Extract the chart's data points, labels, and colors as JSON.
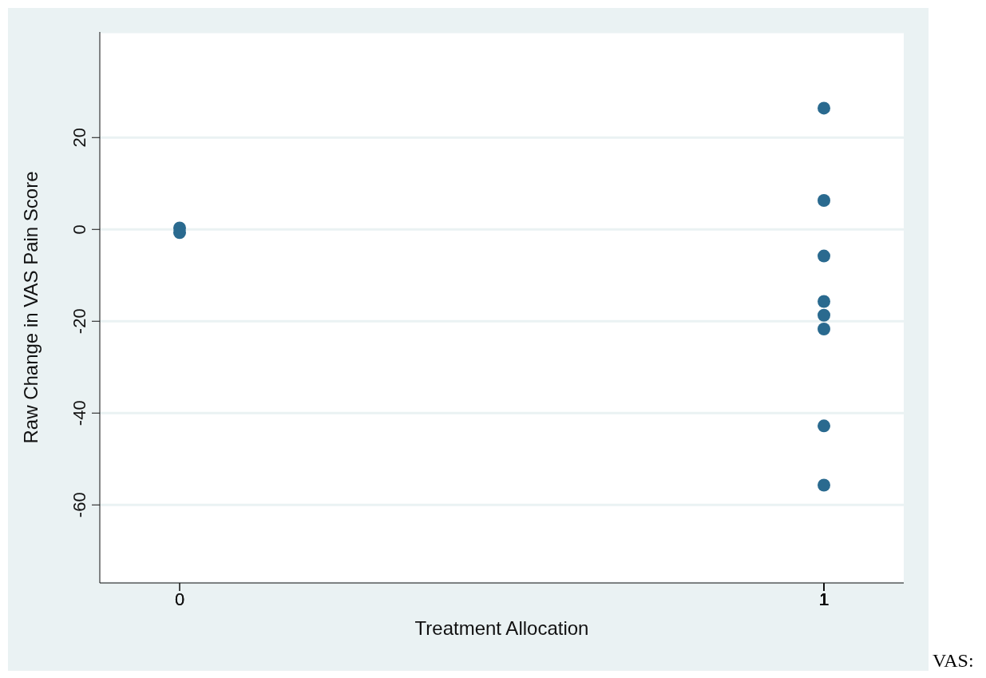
{
  "chart_data": {
    "type": "scatter",
    "xlabel": "Treatment Allocation",
    "ylabel": "Raw Change in VAS Pain Score",
    "annotations": [
      "VAS:"
    ],
    "categories": [
      "0",
      "1"
    ],
    "series": [
      {
        "color": "#2a6a8f",
        "x": [
          "0",
          "0",
          "1",
          "1",
          "1",
          "1",
          "1",
          "1",
          "1",
          "1"
        ],
        "values": [
          0.3,
          -0.7,
          26.4,
          6.3,
          -5.8,
          -15.7,
          -18.7,
          -21.7,
          -42.8,
          -55.7
        ]
      }
    ],
    "ylim": [
      -77,
      43
    ],
    "yticks": [
      -60,
      -40,
      -20,
      0,
      20
    ],
    "grid": "y",
    "marker": "circle"
  }
}
